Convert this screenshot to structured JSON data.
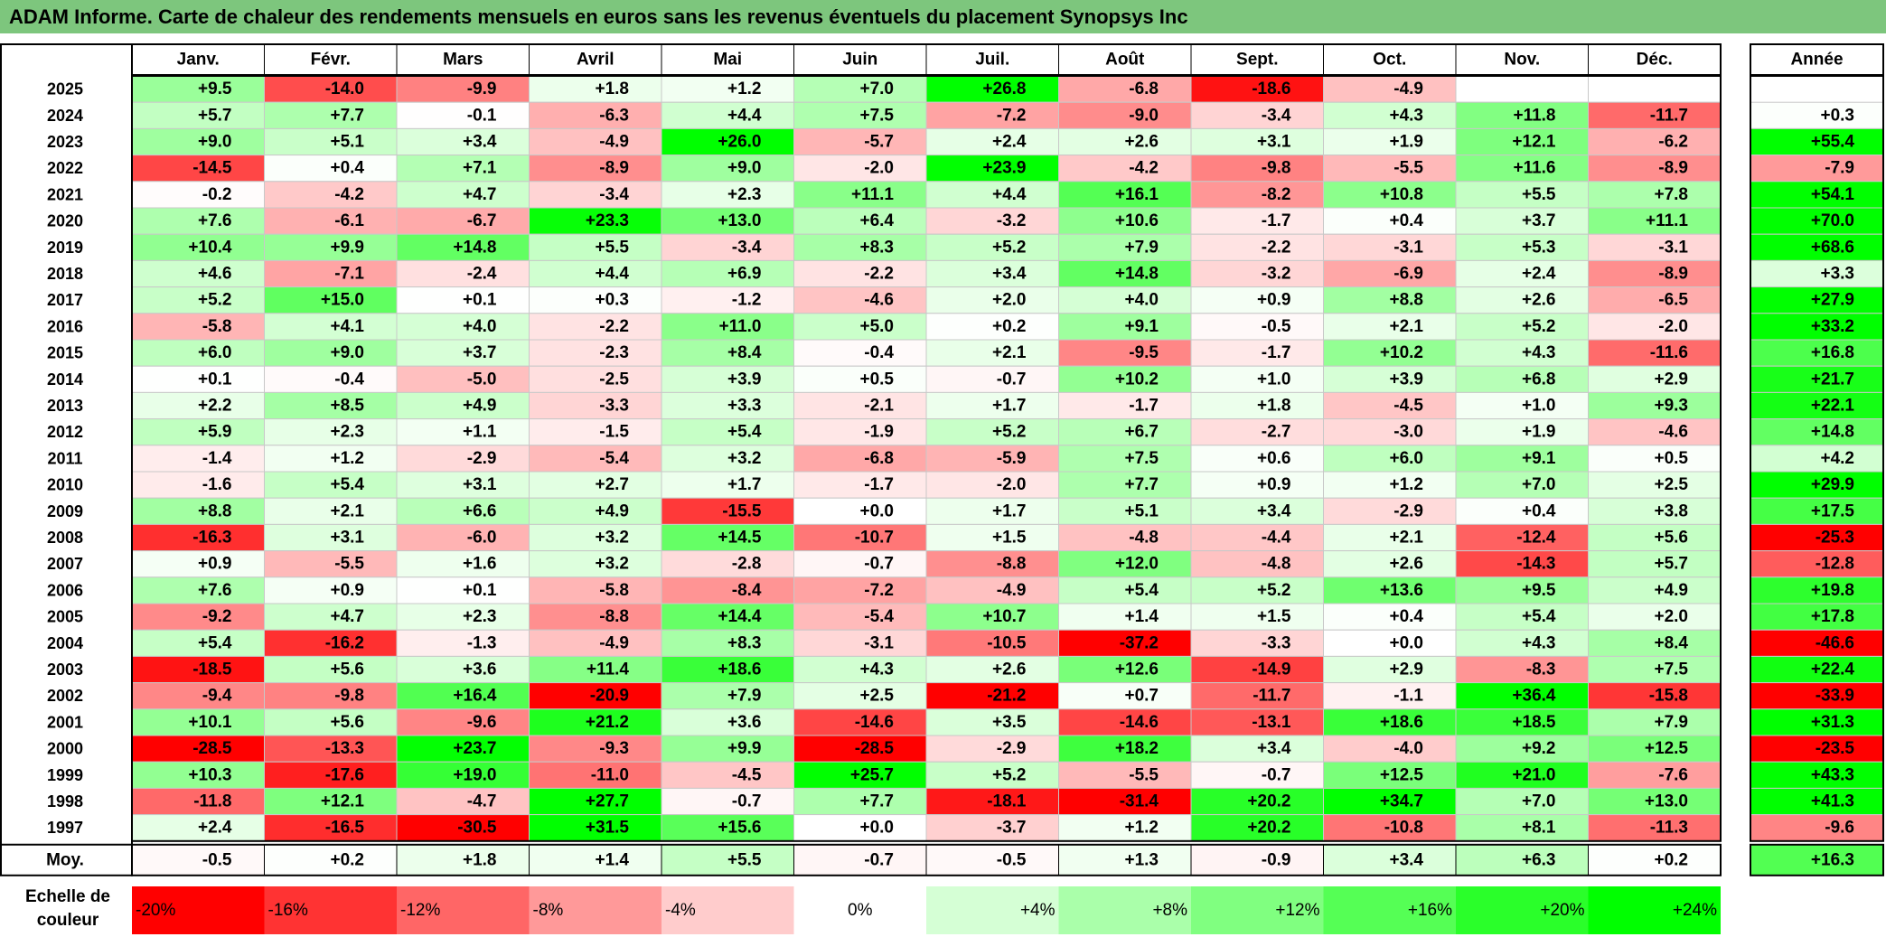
{
  "title": "ADAM Informe. Carte de chaleur des rendements mensuels en euros sans les revenus éventuels du placement Synopsys Inc",
  "chart_data": {
    "type": "heatmap",
    "title": "ADAM Informe. Carte de chaleur des rendements mensuels en euros sans les revenus éventuels du placement Synopsys Inc",
    "months": [
      "Janv.",
      "Févr.",
      "Mars",
      "Avril",
      "Mai",
      "Juin",
      "Juil.",
      "Août",
      "Sept.",
      "Oct.",
      "Nov.",
      "Déc."
    ],
    "year_header": "Année",
    "avg_label": "Moy.",
    "rows": [
      {
        "year": "2025",
        "values": [
          9.5,
          -14.0,
          -9.9,
          1.8,
          1.2,
          7.0,
          26.8,
          -6.8,
          -18.6,
          -4.9,
          null,
          null
        ],
        "annual": null
      },
      {
        "year": "2024",
        "values": [
          5.7,
          7.7,
          -0.1,
          -6.3,
          4.4,
          7.5,
          -7.2,
          -9.0,
          -3.4,
          4.3,
          11.8,
          -11.7
        ],
        "annual": 0.3
      },
      {
        "year": "2023",
        "values": [
          9.0,
          5.1,
          3.4,
          -4.9,
          26.0,
          -5.7,
          2.4,
          2.6,
          3.1,
          1.9,
          12.1,
          -6.2
        ],
        "annual": 55.4
      },
      {
        "year": "2022",
        "values": [
          -14.5,
          0.4,
          7.1,
          -8.9,
          9.0,
          -2.0,
          23.9,
          -4.2,
          -9.8,
          -5.5,
          11.6,
          -8.9
        ],
        "annual": -7.9
      },
      {
        "year": "2021",
        "values": [
          -0.2,
          -4.2,
          4.7,
          -3.4,
          2.3,
          11.1,
          4.4,
          16.1,
          -8.2,
          10.8,
          5.5,
          7.8
        ],
        "annual": 54.1
      },
      {
        "year": "2020",
        "values": [
          7.6,
          -6.1,
          -6.7,
          23.3,
          13.0,
          6.4,
          -3.2,
          10.6,
          -1.7,
          0.4,
          3.7,
          11.1
        ],
        "annual": 70.0
      },
      {
        "year": "2019",
        "values": [
          10.4,
          9.9,
          14.8,
          5.5,
          -3.4,
          8.3,
          5.2,
          7.9,
          -2.2,
          -3.1,
          5.3,
          -3.1
        ],
        "annual": 68.6
      },
      {
        "year": "2018",
        "values": [
          4.6,
          -7.1,
          -2.4,
          4.4,
          6.9,
          -2.2,
          3.4,
          14.8,
          -3.2,
          -6.9,
          2.4,
          -8.9
        ],
        "annual": 3.3
      },
      {
        "year": "2017",
        "values": [
          5.2,
          15.0,
          0.1,
          0.3,
          -1.2,
          -4.6,
          2.0,
          4.0,
          0.9,
          8.8,
          2.6,
          -6.5
        ],
        "annual": 27.9
      },
      {
        "year": "2016",
        "values": [
          -5.8,
          4.1,
          4.0,
          -2.2,
          11.0,
          5.0,
          0.2,
          9.1,
          -0.5,
          2.1,
          5.2,
          -2.0
        ],
        "annual": 33.2
      },
      {
        "year": "2015",
        "values": [
          6.0,
          9.0,
          3.7,
          -2.3,
          8.4,
          -0.4,
          2.1,
          -9.5,
          -1.7,
          10.2,
          4.3,
          -11.6
        ],
        "annual": 16.8
      },
      {
        "year": "2014",
        "values": [
          0.1,
          -0.4,
          -5.0,
          -2.5,
          3.9,
          0.5,
          -0.7,
          10.2,
          1.0,
          3.9,
          6.8,
          2.9
        ],
        "annual": 21.7
      },
      {
        "year": "2013",
        "values": [
          2.2,
          8.5,
          4.9,
          -3.3,
          3.3,
          -2.1,
          1.7,
          -1.7,
          1.8,
          -4.5,
          1.0,
          9.3
        ],
        "annual": 22.1
      },
      {
        "year": "2012",
        "values": [
          5.9,
          2.3,
          1.1,
          -1.5,
          5.4,
          -1.9,
          5.2,
          6.7,
          -2.7,
          -3.0,
          1.9,
          -4.6
        ],
        "annual": 14.8
      },
      {
        "year": "2011",
        "values": [
          -1.4,
          1.2,
          -2.9,
          -5.4,
          3.2,
          -6.8,
          -5.9,
          7.5,
          0.6,
          6.0,
          9.1,
          0.5
        ],
        "annual": 4.2
      },
      {
        "year": "2010",
        "values": [
          -1.6,
          5.4,
          3.1,
          2.7,
          1.7,
          -1.7,
          -2.0,
          7.7,
          0.9,
          1.2,
          7.0,
          2.5
        ],
        "annual": 29.9
      },
      {
        "year": "2009",
        "values": [
          8.8,
          2.1,
          6.6,
          4.9,
          -15.5,
          0.0,
          1.7,
          5.1,
          3.4,
          -2.9,
          0.4,
          3.8
        ],
        "annual": 17.5
      },
      {
        "year": "2008",
        "values": [
          -16.3,
          3.1,
          -6.0,
          3.2,
          14.5,
          -10.7,
          1.5,
          -4.8,
          -4.4,
          2.1,
          -12.4,
          5.6
        ],
        "annual": -25.3
      },
      {
        "year": "2007",
        "values": [
          0.9,
          -5.5,
          1.6,
          3.2,
          -2.8,
          -0.7,
          -8.8,
          12.0,
          -4.8,
          2.6,
          -14.3,
          5.7
        ],
        "annual": -12.8
      },
      {
        "year": "2006",
        "values": [
          7.6,
          0.9,
          0.1,
          -5.8,
          -8.4,
          -7.2,
          -4.9,
          5.4,
          5.2,
          13.6,
          9.5,
          4.9
        ],
        "annual": 19.8
      },
      {
        "year": "2005",
        "values": [
          -9.2,
          4.7,
          2.3,
          -8.8,
          14.4,
          -5.4,
          10.7,
          1.4,
          1.5,
          0.4,
          5.4,
          2.0
        ],
        "annual": 17.8
      },
      {
        "year": "2004",
        "values": [
          5.4,
          -16.2,
          -1.3,
          -4.9,
          8.3,
          -3.1,
          -10.5,
          -37.2,
          -3.3,
          0.0,
          4.3,
          8.4
        ],
        "annual": -46.6
      },
      {
        "year": "2003",
        "values": [
          -18.5,
          5.6,
          3.6,
          11.4,
          18.6,
          4.3,
          2.6,
          12.6,
          -14.9,
          2.9,
          -8.3,
          7.5
        ],
        "annual": 22.4
      },
      {
        "year": "2002",
        "values": [
          -9.4,
          -9.8,
          16.4,
          -20.9,
          7.9,
          2.5,
          -21.2,
          0.7,
          -11.7,
          -1.1,
          36.4,
          -15.8
        ],
        "annual": -33.9
      },
      {
        "year": "2001",
        "values": [
          10.1,
          5.6,
          -9.6,
          21.2,
          3.6,
          -14.6,
          3.5,
          -14.6,
          -13.1,
          18.6,
          18.5,
          7.9
        ],
        "annual": 31.3
      },
      {
        "year": "2000",
        "values": [
          -28.5,
          -13.3,
          23.7,
          -9.3,
          9.9,
          -28.5,
          -2.9,
          18.2,
          3.4,
          -4.0,
          9.2,
          12.5
        ],
        "annual": -23.5
      },
      {
        "year": "1999",
        "values": [
          10.3,
          -17.6,
          19.0,
          -11.0,
          -4.5,
          25.7,
          5.2,
          -5.5,
          -0.7,
          12.5,
          21.0,
          -7.6
        ],
        "annual": 43.3
      },
      {
        "year": "1998",
        "values": [
          -11.8,
          12.1,
          -4.7,
          27.7,
          -0.7,
          7.7,
          -18.1,
          -31.4,
          20.2,
          34.7,
          7.0,
          13.0
        ],
        "annual": 41.3
      },
      {
        "year": "1997",
        "values": [
          2.4,
          -16.5,
          -30.5,
          31.5,
          15.6,
          0.0,
          -3.7,
          1.2,
          20.2,
          -10.8,
          8.1,
          -11.3
        ],
        "annual": -9.6
      }
    ],
    "averages": [
      -0.5,
      0.2,
      1.8,
      1.4,
      5.5,
      -0.7,
      -0.5,
      1.3,
      -0.9,
      3.4,
      6.3,
      0.2
    ],
    "average_annual": 16.3,
    "color_scale": {
      "label": "Echelle de couleur",
      "stops": [
        "-20%",
        "-16%",
        "-12%",
        "-8%",
        "-4%",
        "0%",
        "+4%",
        "+8%",
        "+12%",
        "+16%",
        "+20%",
        "+24%"
      ],
      "stop_values": [
        -20,
        -16,
        -12,
        -8,
        -4,
        0,
        4,
        8,
        12,
        16,
        20,
        24
      ],
      "negative_color": "#ff0000",
      "neutral_color": "#ffffff",
      "positive_color": "#00ff00"
    }
  }
}
